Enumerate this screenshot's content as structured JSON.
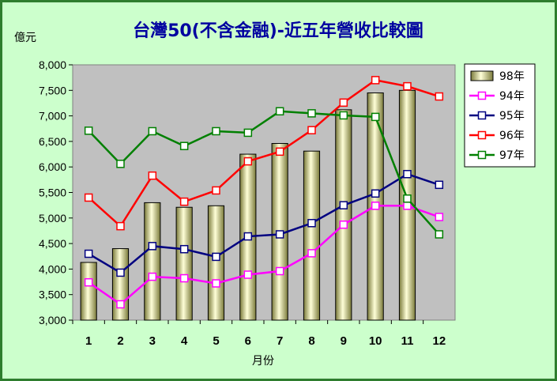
{
  "chart_data": {
    "type": "bar",
    "title": "台灣50(不含金融)-近五年營收比較圖",
    "ylabel": "億元",
    "xlabel": "月份",
    "ylim": [
      3000,
      8000
    ],
    "ytick_step": 500,
    "ytick_labels": [
      "3,000",
      "3,500",
      "4,000",
      "4,500",
      "5,000",
      "5,500",
      "6,000",
      "6,500",
      "7,000",
      "7,500",
      "8,000"
    ],
    "categories": [
      "1",
      "2",
      "3",
      "4",
      "5",
      "6",
      "7",
      "8",
      "9",
      "10",
      "11",
      "12"
    ],
    "bar_series": {
      "name": "98年",
      "color": "#d8d890",
      "values": [
        4130,
        4400,
        5300,
        5210,
        5240,
        6250,
        6460,
        6310,
        7120,
        7450,
        7500,
        null
      ]
    },
    "line_series": [
      {
        "name": "94年",
        "color": "#ff00ff",
        "values": [
          3740,
          3310,
          3850,
          3820,
          3720,
          3890,
          3960,
          4310,
          4870,
          5240,
          5240,
          5020
        ]
      },
      {
        "name": "95年",
        "color": "#000080",
        "values": [
          4300,
          3930,
          4450,
          4390,
          4240,
          4640,
          4680,
          4900,
          5250,
          5480,
          5860,
          5650
        ]
      },
      {
        "name": "96年",
        "color": "#ff0000",
        "values": [
          5400,
          4840,
          5830,
          5320,
          5540,
          6110,
          6300,
          6720,
          7260,
          7700,
          7580,
          7380
        ]
      },
      {
        "name": "97年",
        "color": "#008000",
        "values": [
          6710,
          6060,
          6700,
          6410,
          6700,
          6670,
          7090,
          7050,
          7010,
          6980,
          5380,
          4680
        ]
      }
    ],
    "legend_position": "right",
    "grid": false,
    "plot_background": "#c0c0c0",
    "frame_background": "#ccffcc"
  }
}
